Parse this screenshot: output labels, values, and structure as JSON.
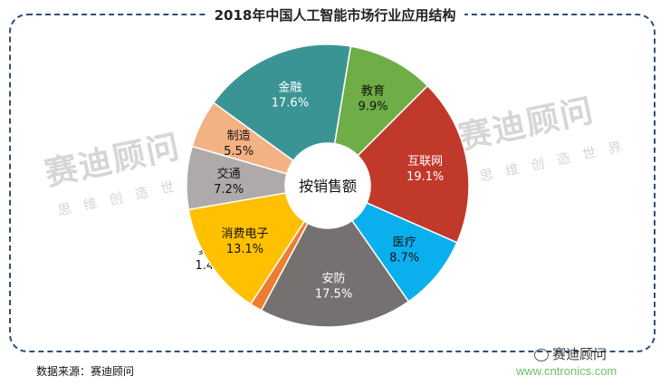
{
  "title": "2018年中国人工智能市场行业应用结构",
  "source": "数据来源：赛迪顾问",
  "brand": "赛迪顾问",
  "site": "www.cntronics.com",
  "watermark": {
    "main": "赛迪顾问",
    "sub": "思维创造世界"
  },
  "chart_data": {
    "type": "pie",
    "donut": true,
    "center_label": "按销售额",
    "slices": [
      {
        "label": "金融",
        "value": 17.6,
        "display": "17.6%",
        "color": "#3b9494"
      },
      {
        "label": "教育",
        "value": 9.9,
        "display": "9.9%",
        "color": "#6fad47"
      },
      {
        "label": "互联网",
        "value": 19.1,
        "display": "19.1%",
        "color": "#c0392b"
      },
      {
        "label": "医疗",
        "value": 8.7,
        "display": "8.7%",
        "color": "#0ab0ee"
      },
      {
        "label": "安防",
        "value": 17.5,
        "display": "17.5%",
        "color": "#767171"
      },
      {
        "label": "其他",
        "value": 1.4,
        "display": "1.4%",
        "color": "#ed7d31"
      },
      {
        "label": "消费电子",
        "value": 13.1,
        "display": "13.1%",
        "color": "#ffc000"
      },
      {
        "label": "交通",
        "value": 7.2,
        "display": "7.2%",
        "color": "#aeaaaa"
      },
      {
        "label": "制造",
        "value": 5.5,
        "display": "5.5%",
        "color": "#f4b183"
      }
    ]
  }
}
